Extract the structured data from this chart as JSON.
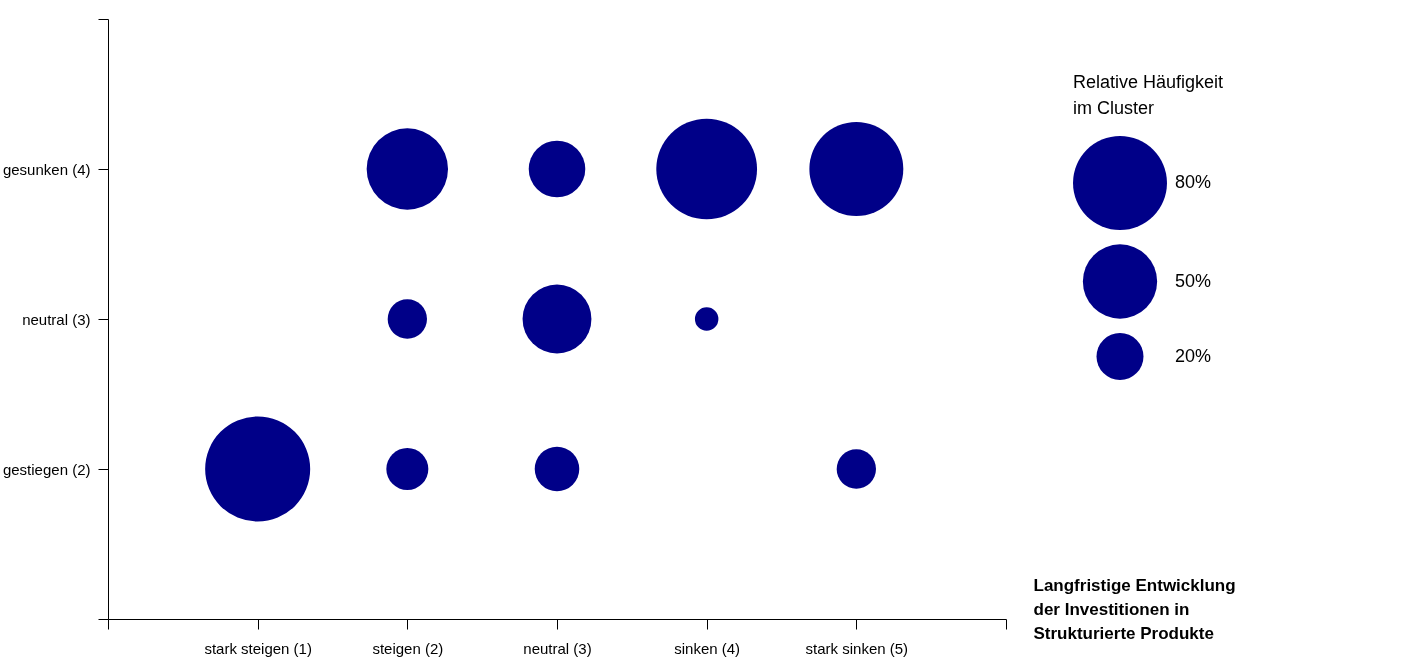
{
  "chart_data": {
    "type": "bubble",
    "xlabel": "Langfristige Entwicklung der Investitionen in Strukturierte Produkte",
    "legend_title": "Relative Häufigkeit im Cluster",
    "xlim": [
      0,
      6
    ],
    "ylim": [
      1,
      5
    ],
    "xticks": [
      {
        "value": 0,
        "label": null
      },
      {
        "value": 1,
        "label": "stark steigen (1)"
      },
      {
        "value": 2,
        "label": "steigen (2)"
      },
      {
        "value": 3,
        "label": "neutral (3)"
      },
      {
        "value": 4,
        "label": "sinken (4)"
      },
      {
        "value": 5,
        "label": "stark sinken (5)"
      },
      {
        "value": 6,
        "label": null
      }
    ],
    "yticks": [
      {
        "value": 1,
        "label": null
      },
      {
        "value": 2,
        "label": "gestiegen (2)"
      },
      {
        "value": 3,
        "label": "neutral (3)"
      },
      {
        "value": 4,
        "label": "gesunken (4)"
      },
      {
        "value": 5,
        "label": null
      }
    ],
    "size_legend": [
      {
        "value": 80,
        "label": "80%"
      },
      {
        "value": 50,
        "label": "50%"
      },
      {
        "value": 20,
        "label": "20%"
      }
    ],
    "grid": false,
    "series": [
      {
        "color": "#000088",
        "x": [
          1,
          2,
          3,
          5,
          2,
          3,
          4,
          2,
          3,
          4,
          5
        ],
        "values": [
          2,
          2,
          2,
          2,
          3,
          3,
          3,
          4,
          4,
          4,
          4
        ],
        "sizes": [
          100,
          16,
          18,
          14,
          14,
          43,
          5,
          60,
          29,
          92,
          80
        ]
      }
    ]
  }
}
